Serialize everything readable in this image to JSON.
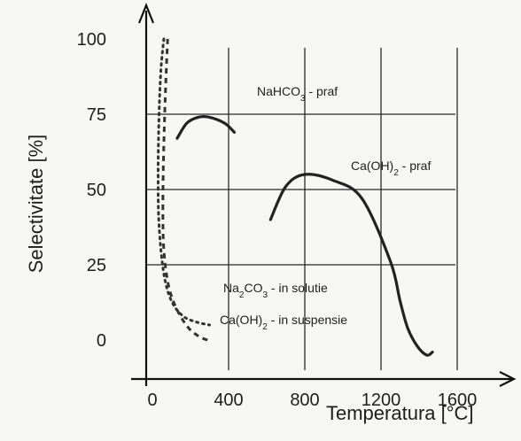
{
  "chart_data": {
    "type": "line",
    "title": "",
    "xlabel": "Temperatura [°C]",
    "ylabel": "Selectivitate [%]",
    "xlim": [
      -90,
      1700
    ],
    "ylim": [
      -10,
      105
    ],
    "x_ticks": [
      0,
      400,
      800,
      1200,
      1600
    ],
    "y_ticks": [
      0,
      25,
      50,
      75,
      100
    ],
    "x_tick_labels": [
      "0",
      "400",
      "800",
      "1200",
      "1600"
    ],
    "y_tick_labels": [
      "0",
      "25",
      "50",
      "75",
      "100"
    ],
    "grid": true,
    "series": [
      {
        "name": "NaHCO3 - praf",
        "label_main": "NaHCO",
        "label_sub": "3",
        "label_rest": " - praf",
        "style": "solid",
        "x": [
          130,
          180,
          240,
          300,
          380,
          430
        ],
        "y": [
          67,
          72,
          74,
          74,
          72,
          69
        ]
      },
      {
        "name": "Ca(OH)2 - praf",
        "label_main": "Ca(OH)",
        "label_sub": "2",
        "label_rest": " - praf",
        "style": "solid",
        "x": [
          620,
          700,
          800,
          950,
          1100,
          1250,
          1300,
          1340,
          1390,
          1440,
          1470
        ],
        "y": [
          40,
          51,
          55,
          53,
          47,
          26,
          13,
          4,
          -2,
          -5,
          -4
        ]
      },
      {
        "name": "Na2CO3 - in solutie",
        "label_main": "Na",
        "label_sub": "2",
        "label_mid": "CO",
        "label_sub2": "3",
        "label_rest": " - in solutie",
        "style": "dotted",
        "x": [
          60,
          45,
          35,
          30,
          35,
          60,
          100,
          160,
          230,
          300
        ],
        "y": [
          100,
          90,
          75,
          55,
          38,
          22,
          13,
          8,
          6,
          5
        ]
      },
      {
        "name": "Ca(OH)2 - in suspensie",
        "label_main": "Ca(OH)",
        "label_sub": "2",
        "label_rest": " - in suspensie",
        "style": "dashed",
        "x": [
          80,
          70,
          60,
          55,
          60,
          85,
          130,
          190,
          250,
          290
        ],
        "y": [
          100,
          85,
          65,
          45,
          30,
          18,
          10,
          4,
          1,
          0
        ]
      }
    ]
  }
}
